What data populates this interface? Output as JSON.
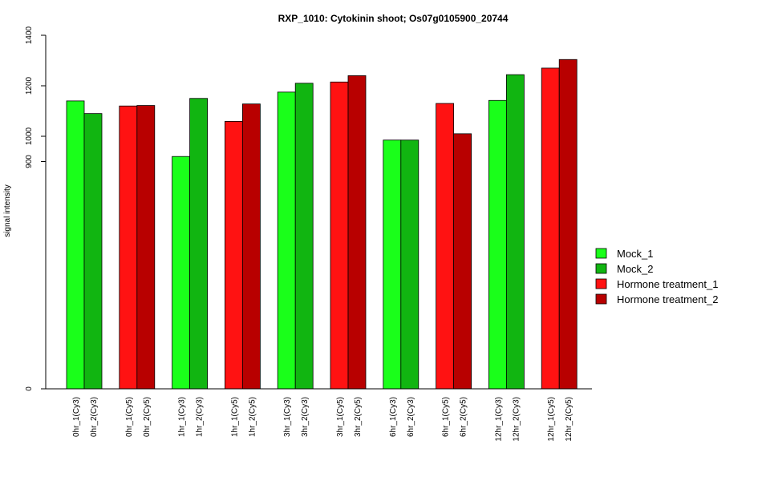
{
  "chart_data": {
    "type": "bar",
    "title": "RXP_1010: Cytokinin shoot; Os07g0105900_20744",
    "xlabel": "",
    "ylabel": "signal intensity",
    "ylim": [
      0,
      1400
    ],
    "yticks": [
      0,
      900,
      1000,
      1200,
      1400
    ],
    "grid": false,
    "legend_position": "right",
    "categories": [
      "0hr_1(Cy3)",
      "0hr_2(Cy3)",
      "0hr_1(Cy5)",
      "0hr_2(Cy5)",
      "1hr_1(Cy3)",
      "1hr_2(Cy3)",
      "1hr_1(Cy5)",
      "1hr_2(Cy5)",
      "3hr_1(Cy3)",
      "3hr_2(Cy3)",
      "3hr_1(Cy5)",
      "3hr_2(Cy5)",
      "6hr_1(Cy3)",
      "6hr_2(Cy3)",
      "6hr_1(Cy5)",
      "6hr_2(Cy5)",
      "12hr_1(Cy3)",
      "12hr_2(Cy3)",
      "12hr_1(Cy5)",
      "12hr_2(Cy5)"
    ],
    "values": [
      1140,
      1090,
      1120,
      1122,
      920,
      1150,
      1059,
      1128,
      1175,
      1210,
      1215,
      1240,
      985,
      985,
      1130,
      1010,
      1142,
      1244,
      1270,
      1304
    ],
    "series_index": [
      0,
      1,
      2,
      3,
      0,
      1,
      2,
      3,
      0,
      1,
      2,
      3,
      0,
      1,
      2,
      3,
      0,
      1,
      2,
      3
    ],
    "series": [
      {
        "name": "Mock_1",
        "color": "#1aff1a"
      },
      {
        "name": "Mock_2",
        "color": "#11b511"
      },
      {
        "name": "Hormone treatment_1",
        "color": "#ff1212"
      },
      {
        "name": "Hormone treatment_2",
        "color": "#b80000"
      }
    ]
  }
}
